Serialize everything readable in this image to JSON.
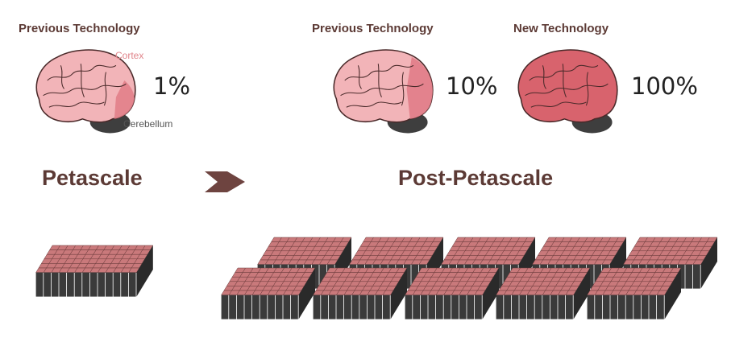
{
  "headers": {
    "left": "Previous Technology",
    "middle": "Previous Technology",
    "right": "New Technology"
  },
  "percentages": {
    "left": "1%",
    "middle": "10%",
    "right": "100%"
  },
  "brain_labels": {
    "cortex": "Cortex",
    "cerebellum": "Cerebellum"
  },
  "sections": {
    "petascale": "Petascale",
    "post_petascale": "Post-Petascale"
  },
  "colors": {
    "heading": "#5c3a35",
    "brain_light": "#f2b4b8",
    "brain_mid": "#e2808a",
    "brain_full": "#d8636d",
    "cerebellum": "#3e3e3e",
    "rack_top": "#c9797b",
    "rack_front": "#3a3a3a",
    "arrow": "#6e4440"
  },
  "brain_fill_fraction": {
    "left": 0.01,
    "middle": 0.1,
    "right": 1.0
  }
}
